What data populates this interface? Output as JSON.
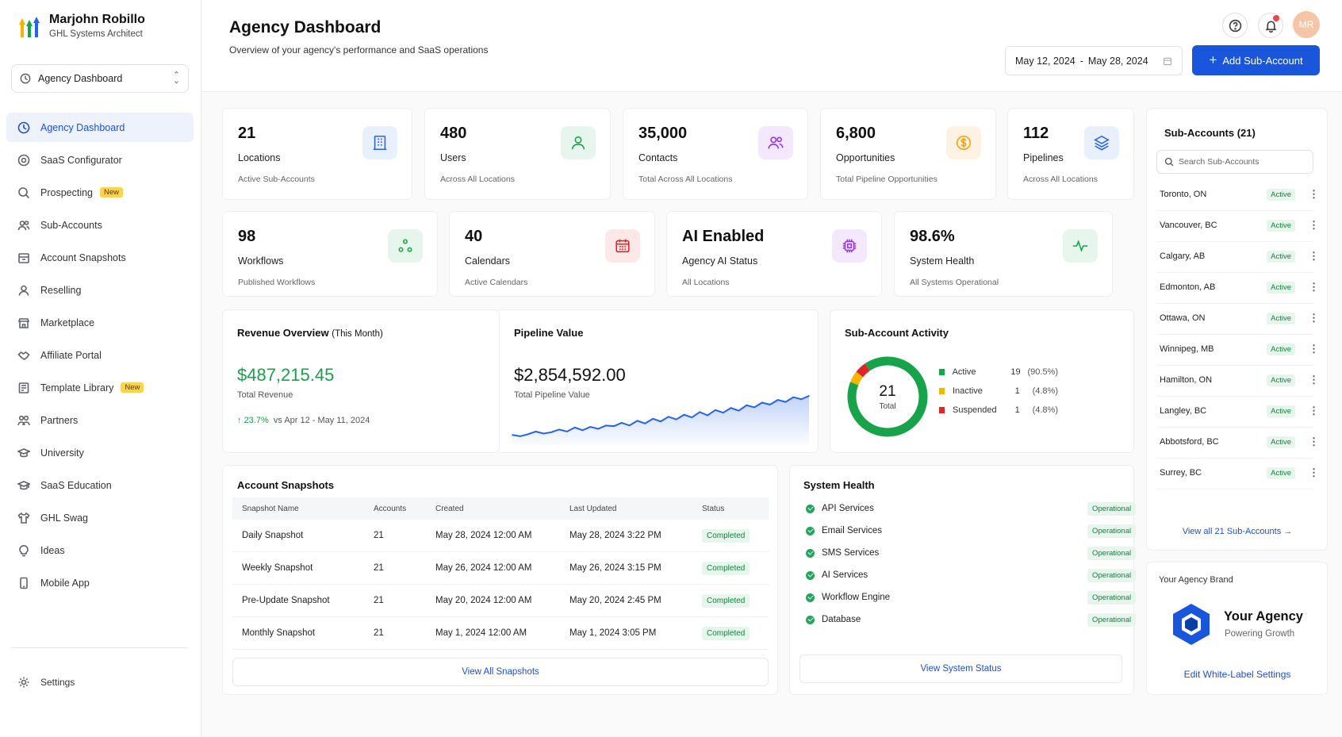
{
  "profile": {
    "name": "Marjohn Robillo",
    "role": "GHL Systems Architect"
  },
  "location_select": {
    "value": "Agency Dashboard"
  },
  "nav": [
    {
      "label": "Agency Dashboard",
      "icon": "dashboard-icon",
      "active": true
    },
    {
      "label": "SaaS Configurator",
      "icon": "settings-cog-icon"
    },
    {
      "label": "Prospecting",
      "icon": "search-icon",
      "badge": "New"
    },
    {
      "label": "Sub-Accounts",
      "icon": "users-icon"
    },
    {
      "label": "Account Snapshots",
      "icon": "archive-icon"
    },
    {
      "label": "Reselling",
      "icon": "user-icon"
    },
    {
      "label": "Marketplace",
      "icon": "store-icon"
    },
    {
      "label": "Affiliate Portal",
      "icon": "handshake-icon"
    },
    {
      "label": "Template Library",
      "icon": "template-icon",
      "badge": "New"
    },
    {
      "label": "Partners",
      "icon": "partners-icon"
    },
    {
      "label": "University",
      "icon": "graduation-cap-icon"
    },
    {
      "label": "SaaS Education",
      "icon": "education-icon"
    },
    {
      "label": "GHL Swag",
      "icon": "shirt-icon"
    },
    {
      "label": "Ideas",
      "icon": "lightbulb-icon"
    },
    {
      "label": "Mobile App",
      "icon": "mobile-icon"
    }
  ],
  "settings_label": "Settings",
  "header": {
    "title": "Agency Dashboard",
    "subtitle": "Overview of your agency's performance and SaaS operations",
    "avatar_initials": "MR",
    "date_start": "May 12, 2024",
    "date_sep": "-",
    "date_end": "May 28, 2024",
    "add_button": "Add Sub-Account"
  },
  "stats_row1": [
    {
      "value": "21",
      "label": "Locations",
      "sub": "Active Sub-Accounts",
      "icon": "building-icon",
      "color": "#2563eb",
      "bg": "#e8effd"
    },
    {
      "value": "480",
      "label": "Users",
      "sub": "Across All Locations",
      "icon": "user-icon",
      "color": "#16a34a",
      "bg": "#e7f6ec"
    },
    {
      "value": "35,000",
      "label": "Contacts",
      "sub": "Total Across All Locations",
      "icon": "users-icon",
      "color": "#9333ea",
      "bg": "#f3e8fd"
    },
    {
      "value": "6,800",
      "label": "Opportunities",
      "sub": "Total Pipeline Opportunities",
      "icon": "dollar-icon",
      "color": "#f59e0b",
      "bg": "#fef3e2"
    },
    {
      "value": "112",
      "label": "Pipelines",
      "sub": "Across All Locations",
      "icon": "layers-icon",
      "color": "#2563eb",
      "bg": "#e8effd"
    }
  ],
  "stats_row2": [
    {
      "value": "98",
      "label": "Workflows",
      "sub": "Published Workflows",
      "icon": "workflow-icon",
      "color": "#16a34a",
      "bg": "#e7f6ec"
    },
    {
      "value": "40",
      "label": "Calendars",
      "sub": "Active Calendars",
      "icon": "calendar-icon",
      "color": "#dc2626",
      "bg": "#fde8e8"
    },
    {
      "value": "AI Enabled",
      "label": "Agency AI Status",
      "sub": "All Locations",
      "icon": "chip-icon",
      "color": "#9333ea",
      "bg": "#f3e8fd"
    },
    {
      "value": "98.6%",
      "label": "System Health",
      "sub": "All Systems Operational",
      "icon": "pulse-icon",
      "color": "#16a34a",
      "bg": "#e7f6ec"
    }
  ],
  "revenue": {
    "title": "Revenue Overview",
    "title_suffix": "(This Month)",
    "value": "$487,215.45",
    "label": "Total Revenue",
    "change": "23.7%",
    "compare": "vs Apr 12 - May 11, 2024"
  },
  "pipeline": {
    "title": "Pipeline Value",
    "value": "$2,854,592.00",
    "label": "Total Pipeline Value"
  },
  "activity": {
    "title": "Sub-Account Activity",
    "total": "21",
    "total_label": "Total",
    "legend": [
      {
        "name": "Active",
        "count": "19",
        "pct": "(90.5%)",
        "color": "#16a34a"
      },
      {
        "name": "Inactive",
        "count": "1",
        "pct": "(4.8%)",
        "color": "#f5b400"
      },
      {
        "name": "Suspended",
        "count": "1",
        "pct": "(4.8%)",
        "color": "#dc2626"
      }
    ]
  },
  "chart_data": {
    "type": "area",
    "title": "",
    "xlabel": "",
    "ylabel": "",
    "values": [
      8,
      6,
      9,
      13,
      10,
      12,
      16,
      13,
      19,
      15,
      20,
      17,
      22,
      21,
      26,
      22,
      29,
      25,
      32,
      28,
      35,
      31,
      38,
      34,
      42,
      37,
      45,
      41,
      48,
      44,
      52,
      49,
      56,
      53,
      60,
      57,
      64,
      61,
      66
    ]
  },
  "snapshots": {
    "title": "Account Snapshots",
    "columns": [
      "Snapshot Name",
      "Accounts",
      "Created",
      "Last Updated",
      "Status"
    ],
    "rows": [
      [
        "Daily Snapshot",
        "21",
        "May 28, 2024 12:00 AM",
        "May 28, 2024 3:22 PM",
        "Completed"
      ],
      [
        "Weekly Snapshot",
        "21",
        "May 26, 2024 12:00 AM",
        "May 26, 2024 3:15 PM",
        "Completed"
      ],
      [
        "Pre-Update Snapshot",
        "21",
        "May 20, 2024 12:00 AM",
        "May 20, 2024 2:45 PM",
        "Completed"
      ],
      [
        "Monthly Snapshot",
        "21",
        "May 1, 2024 12:00 AM",
        "May 1, 2024 3:05 PM",
        "Completed"
      ]
    ],
    "view_all": "View All Snapshots"
  },
  "system_health": {
    "title": "System Health",
    "items": [
      {
        "name": "API Services",
        "status": "Operational"
      },
      {
        "name": "Email Services",
        "status": "Operational"
      },
      {
        "name": "SMS Services",
        "status": "Operational"
      },
      {
        "name": "AI Services",
        "status": "Operational"
      },
      {
        "name": "Workflow Engine",
        "status": "Operational"
      },
      {
        "name": "Database",
        "status": "Operational"
      }
    ],
    "view": "View System Status"
  },
  "subaccounts": {
    "title": "Sub-Accounts (21)",
    "search_placeholder": "Search Sub-Accounts",
    "items": [
      {
        "name": "Toronto, ON",
        "status": "Active"
      },
      {
        "name": "Vancouver, BC",
        "status": "Active"
      },
      {
        "name": "Calgary, AB",
        "status": "Active"
      },
      {
        "name": "Edmonton, AB",
        "status": "Active"
      },
      {
        "name": "Ottawa, ON",
        "status": "Active"
      },
      {
        "name": "Winnipeg, MB",
        "status": "Active"
      },
      {
        "name": "Hamilton, ON",
        "status": "Active"
      },
      {
        "name": "Langley, BC",
        "status": "Active"
      },
      {
        "name": "Abbotsford, BC",
        "status": "Active"
      },
      {
        "name": "Surrey, BC",
        "status": "Active"
      }
    ],
    "view_all": "View all 21 Sub-Accounts"
  },
  "brand": {
    "heading": "Your Agency Brand",
    "name": "Your Agency",
    "tagline": "Powering Growth",
    "edit": "Edit White-Label Settings"
  }
}
